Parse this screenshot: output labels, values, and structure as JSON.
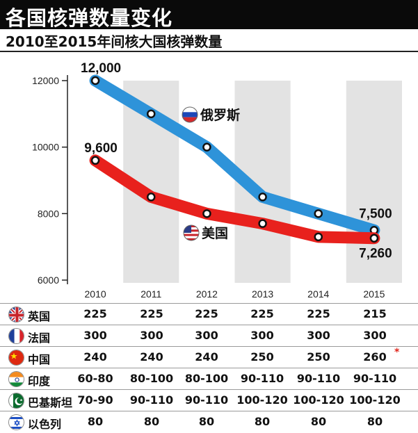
{
  "header": {
    "title": "各国核弹数量变化",
    "subtitle": "2010至2015年间核大国核弹数量"
  },
  "colors": {
    "russia_line": "#2e93d9",
    "usa_line": "#e8211d",
    "band": "#e3e3e3",
    "note": "#e0261c"
  },
  "chart_data": {
    "type": "line",
    "categories": [
      "2010",
      "2011",
      "2012",
      "2013",
      "2014",
      "2015"
    ],
    "ylim": [
      6000,
      12000
    ],
    "y_ticks": [
      "6000",
      "8000",
      "10000",
      "12000"
    ],
    "shaded_bands": [
      "2011",
      "2013",
      "2015"
    ],
    "series": [
      {
        "name": "俄罗斯",
        "icon": "russia-flag-icon",
        "color": "#2e93d9",
        "values": [
          12000,
          11000,
          10000,
          8500,
          8000,
          7500
        ],
        "labels": {
          "0": "12,000",
          "5": "7,500"
        }
      },
      {
        "name": "美国",
        "icon": "usa-flag-icon",
        "color": "#e8211d",
        "values": [
          9600,
          8500,
          8000,
          7700,
          7300,
          7260
        ],
        "labels": {
          "0": "9,600",
          "5": "7,260"
        }
      }
    ]
  },
  "table": {
    "rows": [
      {
        "country": "英国",
        "flag": "uk-flag-icon",
        "values": [
          "225",
          "225",
          "225",
          "225",
          "225",
          "215"
        ],
        "note": ""
      },
      {
        "country": "法国",
        "flag": "france-flag-icon",
        "values": [
          "300",
          "300",
          "300",
          "300",
          "300",
          "300"
        ],
        "note": ""
      },
      {
        "country": "中国",
        "flag": "china-flag-icon",
        "values": [
          "240",
          "240",
          "240",
          "250",
          "250",
          "260"
        ],
        "note": "*"
      },
      {
        "country": "印度",
        "flag": "india-flag-icon",
        "values": [
          "60-80",
          "80-100",
          "80-100",
          "90-110",
          "90-110",
          "90-110"
        ],
        "note": ""
      },
      {
        "country": "巴基斯坦",
        "flag": "pakistan-flag-icon",
        "values": [
          "70-90",
          "90-110",
          "90-110",
          "100-120",
          "100-120",
          "100-120"
        ],
        "note": ""
      },
      {
        "country": "以色列",
        "flag": "israel-flag-icon",
        "values": [
          "80",
          "80",
          "80",
          "80",
          "80",
          "80"
        ],
        "note": ""
      }
    ]
  }
}
